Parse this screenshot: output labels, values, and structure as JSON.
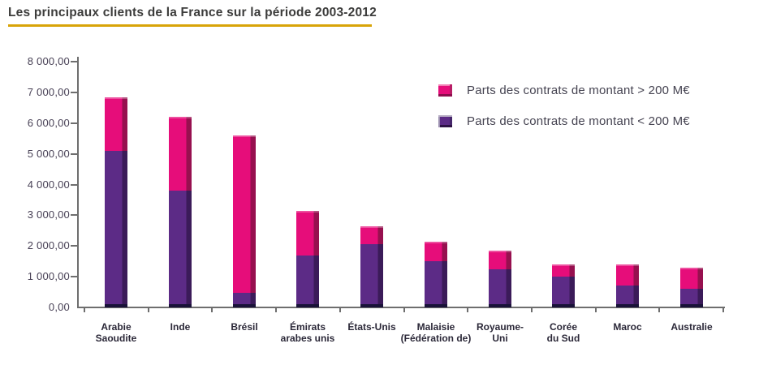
{
  "header": {
    "title": "Les principaux clients de la France sur la période 2003-2012",
    "underline_color": "#d8a408"
  },
  "legend": [
    {
      "label": "Parts des contrats de montant > 200 M€",
      "color": "#e60d7a",
      "edge_color": "#8e0c4d",
      "series": "over_200"
    },
    {
      "label": "Parts des contrats de montant  < 200 M€",
      "color": "#5c2b86",
      "edge_color": "#2e1245",
      "series": "under_200"
    }
  ],
  "chart_data": {
    "type": "bar",
    "stacked": true,
    "title": "Les principaux clients de la France sur la période 2003-2012",
    "categories": [
      "Arabie Saoudite",
      "Inde",
      "Brésil",
      "Émirats arabes unis",
      "États-Unis",
      "Malaisie (Fédération de)",
      "Royaume-Uni",
      "Corée du Sud",
      "Maroc",
      "Australie"
    ],
    "category_label_lines": [
      [
        "Arabie",
        "Saoudite"
      ],
      [
        "Inde"
      ],
      [
        "Brésil"
      ],
      [
        "Émirats",
        "arabes unis"
      ],
      [
        "États-Unis"
      ],
      [
        "Malaisie",
        "(Fédération de)"
      ],
      [
        "Royaume-",
        "Uni"
      ],
      [
        "Corée",
        "du Sud"
      ],
      [
        "Maroc"
      ],
      [
        "Australie"
      ]
    ],
    "series": [
      {
        "name": "Parts des contrats de montant < 200 M€",
        "color": "#5c2b86",
        "edge_color": "#3b1b59",
        "values": [
          5100,
          3800,
          480,
          1700,
          2050,
          1500,
          1250,
          1000,
          700,
          600
        ]
      },
      {
        "name": "Parts des contrats de montant > 200 M€",
        "color": "#e60d7a",
        "edge_color": "#97104f",
        "values": [
          1750,
          2400,
          5120,
          1450,
          600,
          650,
          600,
          400,
          690,
          700
        ]
      }
    ],
    "totals": [
      6850,
      6200,
      5600,
      3150,
      2650,
      2150,
      1850,
      1400,
      1390,
      1300
    ],
    "xlabel": "",
    "ylabel": "",
    "ylim": [
      0,
      8000
    ],
    "ytick_step": 1000,
    "ytick_labels": [
      "0,00",
      "1 000,00",
      "2 000,00",
      "3 000,00",
      "4 000,00",
      "5 000,00",
      "6 000,00",
      "7 000,00",
      "8 000,00"
    ],
    "grid": false,
    "legend_position": "top-right"
  }
}
